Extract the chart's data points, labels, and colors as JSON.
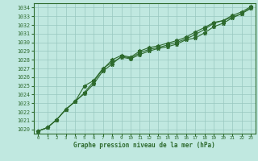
{
  "x": [
    0,
    1,
    2,
    3,
    4,
    5,
    6,
    7,
    8,
    9,
    10,
    11,
    12,
    13,
    14,
    15,
    16,
    17,
    18,
    19,
    20,
    21,
    22,
    23
  ],
  "line1": [
    1019.8,
    1020.2,
    1021.1,
    1022.3,
    1023.2,
    1025.0,
    1025.6,
    1027.0,
    1027.7,
    1028.3,
    1028.1,
    1028.6,
    1029.0,
    1029.3,
    1029.5,
    1029.8,
    1030.3,
    1030.5,
    1031.1,
    1031.8,
    1032.2,
    1032.8,
    1033.3,
    1033.9
  ],
  "line2": [
    1019.8,
    1020.2,
    1021.1,
    1022.3,
    1023.2,
    1024.1,
    1025.2,
    1026.7,
    1027.5,
    1028.4,
    1028.2,
    1028.8,
    1029.2,
    1029.4,
    1029.7,
    1030.0,
    1030.4,
    1030.9,
    1031.5,
    1032.2,
    1032.5,
    1033.1,
    1033.5,
    1034.1
  ],
  "line3": [
    1019.8,
    1020.2,
    1021.1,
    1022.3,
    1023.2,
    1024.2,
    1025.5,
    1026.9,
    1028.0,
    1028.5,
    1028.3,
    1029.0,
    1029.4,
    1029.6,
    1029.9,
    1030.2,
    1030.6,
    1031.2,
    1031.7,
    1032.3,
    1032.5,
    1032.9,
    1033.3,
    1034.0
  ],
  "line_color": "#2d6a2d",
  "bg_color": "#c0e8e0",
  "grid_color": "#98c8c0",
  "xlabel": "Graphe pression niveau de la mer (hPa)",
  "ylim_min": 1019.5,
  "ylim_max": 1034.5,
  "xlim_min": -0.5,
  "xlim_max": 23.5,
  "yticks": [
    1020,
    1021,
    1022,
    1023,
    1024,
    1025,
    1026,
    1027,
    1028,
    1029,
    1030,
    1031,
    1032,
    1033,
    1034
  ],
  "xtick_labels": [
    "0",
    "1",
    "2",
    "3",
    "4",
    "5",
    "6",
    "7",
    "8",
    "9",
    "10",
    "11",
    "12",
    "13",
    "14",
    "15",
    "16",
    "17",
    "18",
    "19",
    "20",
    "21",
    "22",
    "23"
  ]
}
